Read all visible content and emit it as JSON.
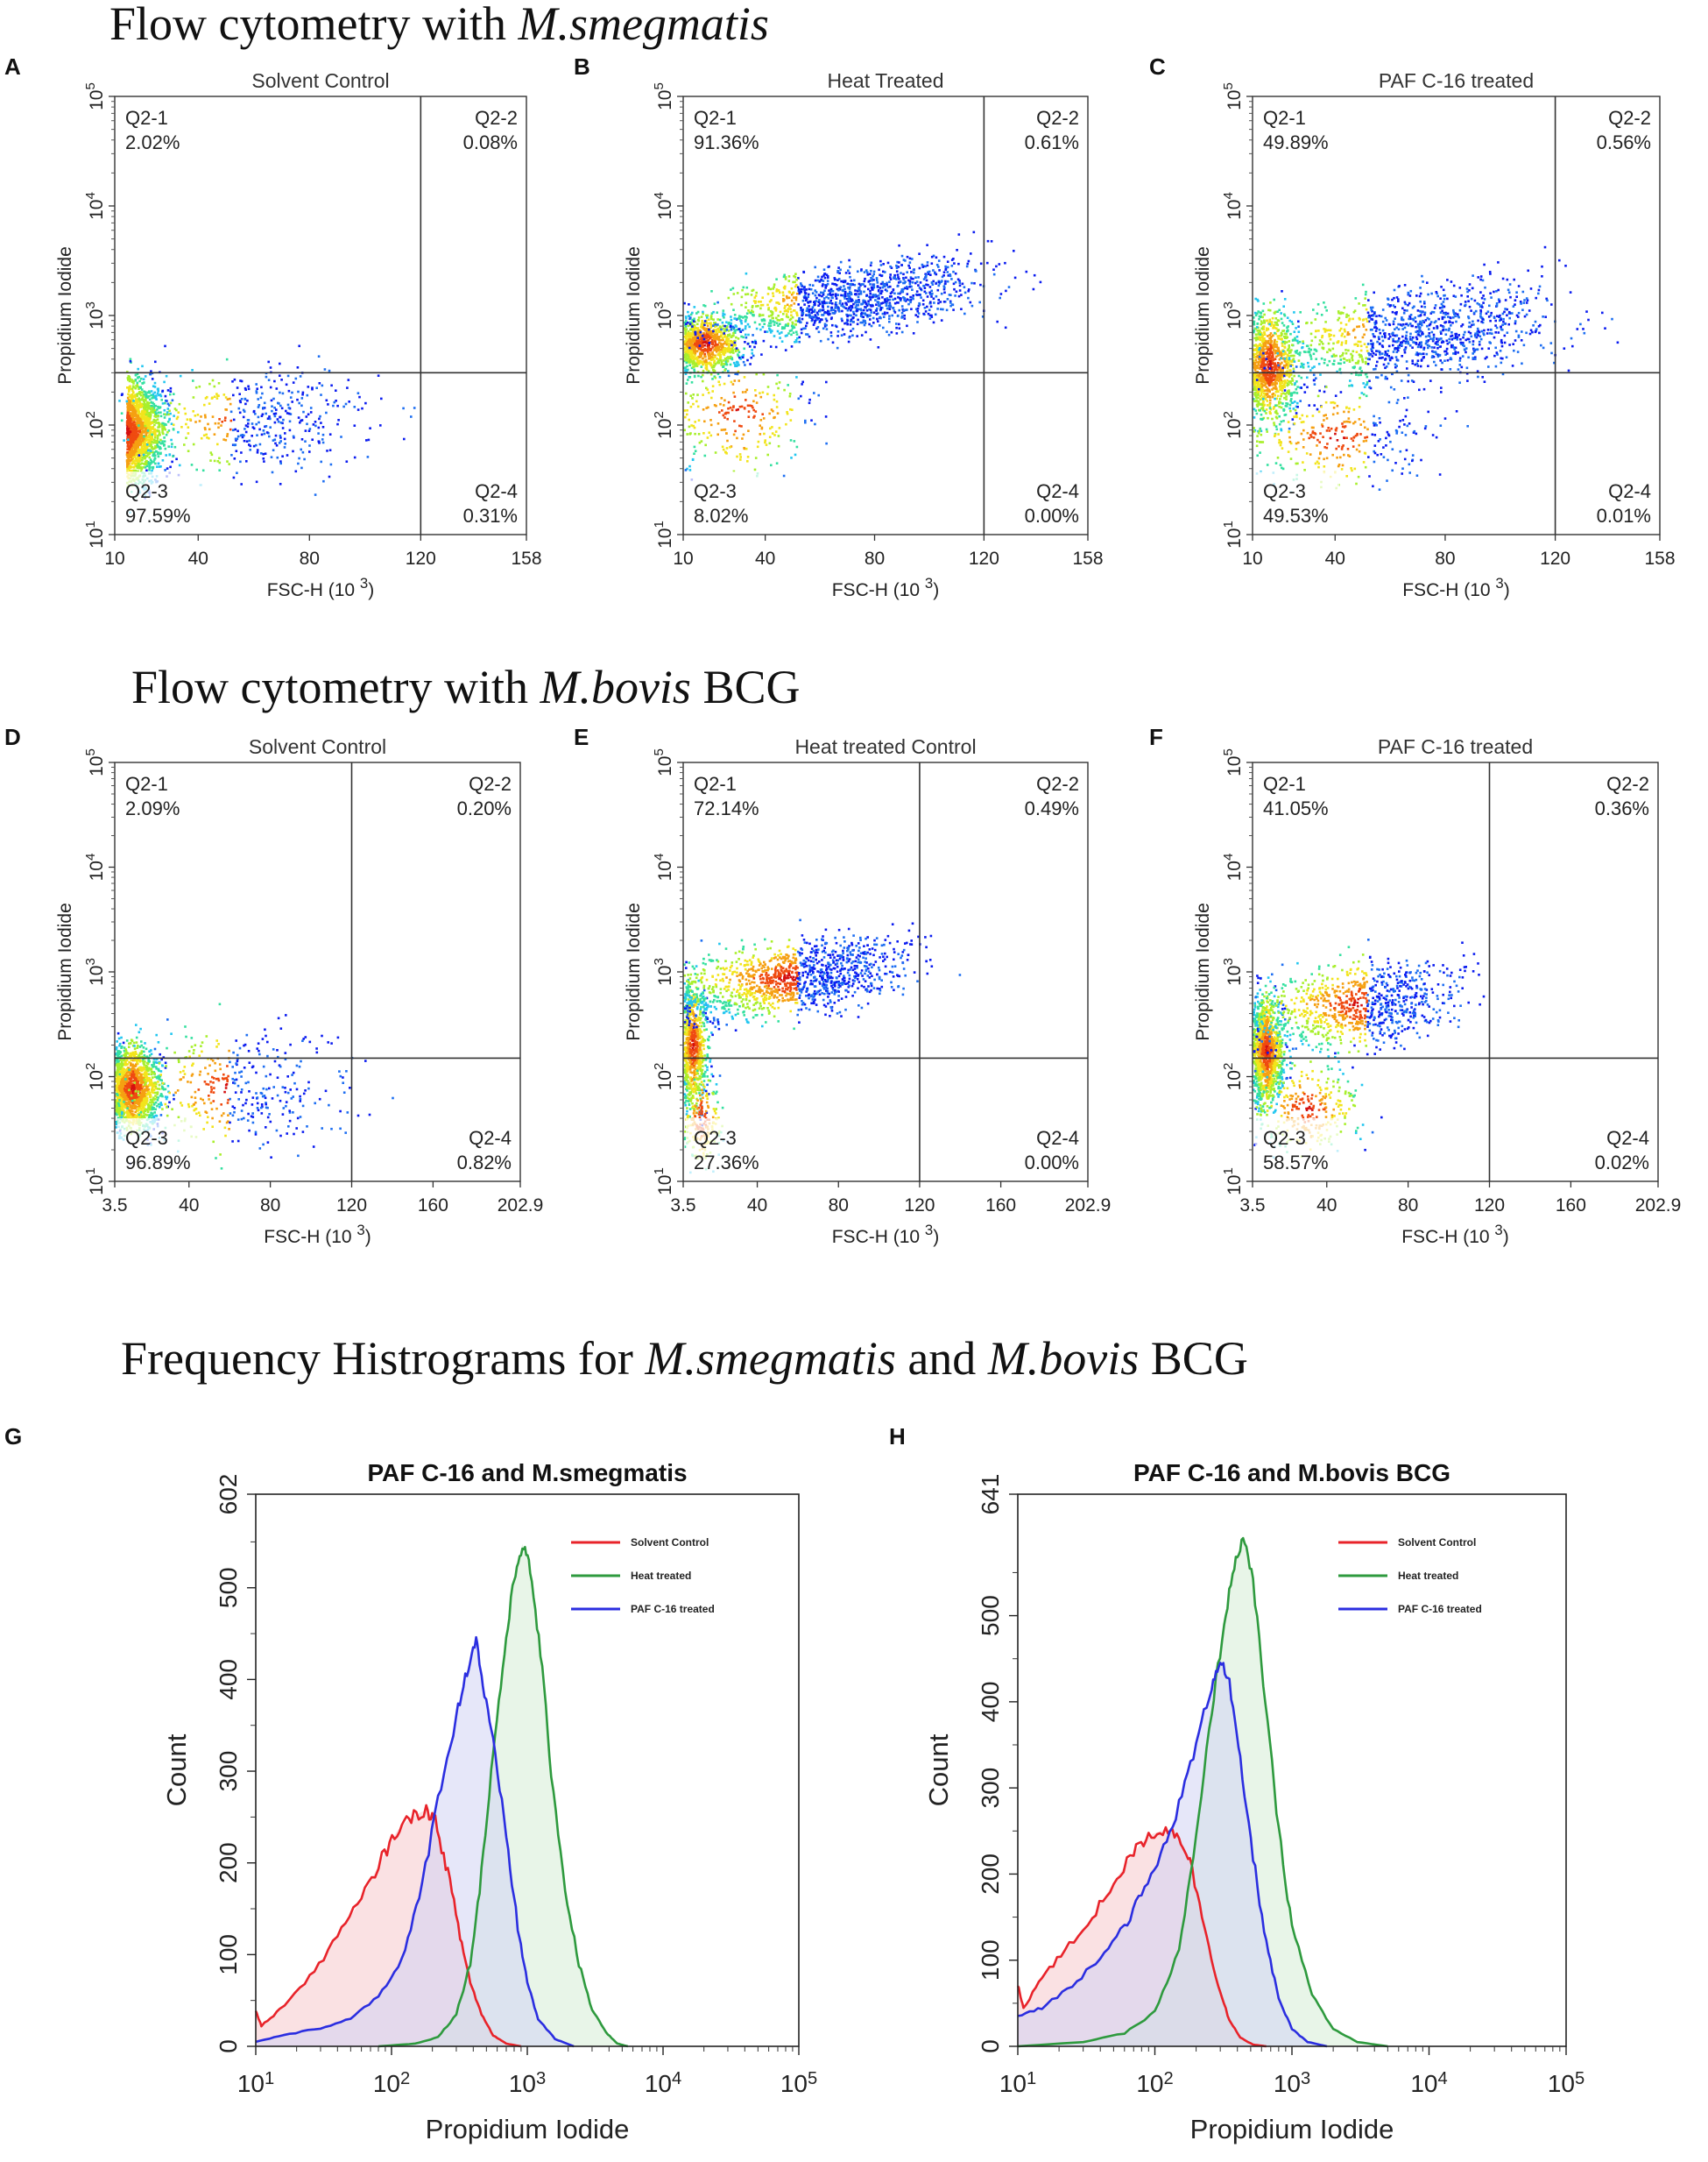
{
  "headings": {
    "smeg": {
      "prefix": "Flow cytometry with ",
      "organism": "M.smegmatis"
    },
    "bcg": {
      "prefix": "Flow cytometry with ",
      "organism": "M.bovis",
      "suffix": " BCG"
    },
    "hist": {
      "prefix": "Frequency Histrograms for ",
      "org1": "M.smegmatis",
      "middle": " and ",
      "org2": "M.bovis",
      "suffix": " BCG"
    }
  },
  "chart_data": [
    {
      "panel": "A",
      "type": "scatter",
      "title": "Solvent Control",
      "organism": "M.smegmatis",
      "xlabel": "FSC-H  (10 3)",
      "ylabel": "Propidium Iodide",
      "xticks": [
        "10",
        "40",
        "80",
        "120",
        "158"
      ],
      "xrange": [
        10,
        158
      ],
      "yticks": [
        "10 1",
        "10 2",
        "10 3",
        "10 4",
        "10 5"
      ],
      "yscale": "log",
      "yrange": [
        10,
        100000
      ],
      "gate": {
        "x": 120,
        "y": 300
      },
      "quadrants": {
        "q1": {
          "name": "Q2-1",
          "pct": "2.02%"
        },
        "q2": {
          "name": "Q2-2",
          "pct": "0.08%"
        },
        "q3": {
          "name": "Q2-3",
          "pct": "97.59%"
        },
        "q4": {
          "name": "Q2-4",
          "pct": "0.31%"
        }
      }
    },
    {
      "panel": "B",
      "type": "scatter",
      "title": "Heat Treated",
      "organism": "M.smegmatis",
      "xlabel": "FSC-H  (10 3)",
      "ylabel": "Propidium Iodide",
      "xticks": [
        "10",
        "40",
        "80",
        "120",
        "158"
      ],
      "xrange": [
        10,
        158
      ],
      "yticks": [
        "10 1",
        "10 2",
        "10 3",
        "10 4",
        "10 5"
      ],
      "yscale": "log",
      "yrange": [
        10,
        100000
      ],
      "gate": {
        "x": 120,
        "y": 300
      },
      "quadrants": {
        "q1": {
          "name": "Q2-1",
          "pct": "91.36%"
        },
        "q2": {
          "name": "Q2-2",
          "pct": "0.61%"
        },
        "q3": {
          "name": "Q2-3",
          "pct": "8.02%"
        },
        "q4": {
          "name": "Q2-4",
          "pct": "0.00%"
        }
      }
    },
    {
      "panel": "C",
      "type": "scatter",
      "title": "PAF C-16 treated",
      "organism": "M.smegmatis",
      "xlabel": "FSC-H  (10 3)",
      "ylabel": "Propidium Iodide",
      "xticks": [
        "10",
        "40",
        "80",
        "120",
        "158"
      ],
      "xrange": [
        10,
        158
      ],
      "yticks": [
        "10 1",
        "10 2",
        "10 3",
        "10 4",
        "10 5"
      ],
      "yscale": "log",
      "yrange": [
        10,
        100000
      ],
      "gate": {
        "x": 120,
        "y": 300
      },
      "quadrants": {
        "q1": {
          "name": "Q2-1",
          "pct": "49.89%"
        },
        "q2": {
          "name": "Q2-2",
          "pct": "0.56%"
        },
        "q3": {
          "name": "Q2-3",
          "pct": "49.53%"
        },
        "q4": {
          "name": "Q2-4",
          "pct": "0.01%"
        }
      }
    },
    {
      "panel": "D",
      "type": "scatter",
      "title": "Solvent Control",
      "organism": "M.bovis BCG",
      "xlabel": "FSC-H  (10 3)",
      "ylabel": "Propidium Iodide",
      "xticks": [
        "3.5",
        "40",
        "80",
        "120",
        "160",
        "202.9"
      ],
      "xrange": [
        3.5,
        202.9
      ],
      "yticks": [
        "10 1",
        "10 2",
        "10 3",
        "10 4",
        "10 5"
      ],
      "yscale": "log",
      "yrange": [
        10,
        100000
      ],
      "gate": {
        "x": 120,
        "y": 150
      },
      "quadrants": {
        "q1": {
          "name": "Q2-1",
          "pct": "2.09%"
        },
        "q2": {
          "name": "Q2-2",
          "pct": "0.20%"
        },
        "q3": {
          "name": "Q2-3",
          "pct": "96.89%"
        },
        "q4": {
          "name": "Q2-4",
          "pct": "0.82%"
        }
      }
    },
    {
      "panel": "E",
      "type": "scatter",
      "title": "Heat treated Control",
      "organism": "M.bovis BCG",
      "xlabel": "FSC-H  (10 3)",
      "ylabel": "Propidium Iodide",
      "xticks": [
        "3.5",
        "40",
        "80",
        "120",
        "160",
        "202.9"
      ],
      "xrange": [
        3.5,
        202.9
      ],
      "yticks": [
        "10 1",
        "10 2",
        "10 3",
        "10 4",
        "10 5"
      ],
      "yscale": "log",
      "yrange": [
        10,
        100000
      ],
      "gate": {
        "x": 120,
        "y": 150
      },
      "quadrants": {
        "q1": {
          "name": "Q2-1",
          "pct": "72.14%"
        },
        "q2": {
          "name": "Q2-2",
          "pct": "0.49%"
        },
        "q3": {
          "name": "Q2-3",
          "pct": "27.36%"
        },
        "q4": {
          "name": "Q2-4",
          "pct": "0.00%"
        }
      }
    },
    {
      "panel": "F",
      "type": "scatter",
      "title": "PAF C-16 treated",
      "organism": "M.bovis BCG",
      "xlabel": "FSC-H  (10 3)",
      "ylabel": "Propidium Iodide",
      "xticks": [
        "3.5",
        "40",
        "80",
        "120",
        "160",
        "202.9"
      ],
      "xrange": [
        3.5,
        202.9
      ],
      "yticks": [
        "10 1",
        "10 2",
        "10 3",
        "10 4",
        "10 5"
      ],
      "yscale": "log",
      "yrange": [
        10,
        100000
      ],
      "gate": {
        "x": 120,
        "y": 150
      },
      "quadrants": {
        "q1": {
          "name": "Q2-1",
          "pct": "41.05%"
        },
        "q2": {
          "name": "Q2-2",
          "pct": "0.36%"
        },
        "q3": {
          "name": "Q2-3",
          "pct": "58.57%"
        },
        "q4": {
          "name": "Q2-4",
          "pct": "0.02%"
        }
      }
    },
    {
      "panel": "G",
      "type": "area",
      "title": "PAF C-16 and M.smegmatis",
      "xlabel": "Propidium Iodide",
      "ylabel": "Count",
      "xscale": "log",
      "xrange": [
        10,
        100000
      ],
      "xticks": [
        "10 1",
        "10 2",
        "10 3",
        "10 4",
        "10 5"
      ],
      "yrange": [
        0,
        602
      ],
      "yticks": [
        "0",
        "100",
        "200",
        "300",
        "400",
        "500",
        "602"
      ],
      "legend_position": "top-right",
      "series": [
        {
          "name": "Solvent Control",
          "color": "#e8232a",
          "fill": "#f6c9cc",
          "points": [
            [
              10,
              40
            ],
            [
              11,
              22
            ],
            [
              15,
              40
            ],
            [
              25,
              75
            ],
            [
              40,
              120
            ],
            [
              60,
              160
            ],
            [
              85,
              205
            ],
            [
              110,
              235
            ],
            [
              140,
              250
            ],
            [
              180,
              258
            ],
            [
              210,
              245
            ],
            [
              260,
              190
            ],
            [
              320,
              120
            ],
            [
              380,
              70
            ],
            [
              460,
              35
            ],
            [
              560,
              12
            ],
            [
              700,
              3
            ],
            [
              900,
              0
            ]
          ]
        },
        {
          "name": "Heat treated",
          "color": "#2e9a3e",
          "fill": "#d5ecd6",
          "points": [
            [
              80,
              0
            ],
            [
              150,
              3
            ],
            [
              220,
              10
            ],
            [
              300,
              35
            ],
            [
              380,
              90
            ],
            [
              460,
              190
            ],
            [
              560,
              320
            ],
            [
              680,
              430
            ],
            [
              800,
              510
            ],
            [
              920,
              548
            ],
            [
              1050,
              520
            ],
            [
              1250,
              430
            ],
            [
              1500,
              300
            ],
            [
              1900,
              170
            ],
            [
              2400,
              90
            ],
            [
              3000,
              40
            ],
            [
              3800,
              15
            ],
            [
              4600,
              3
            ],
            [
              5500,
              0
            ]
          ]
        },
        {
          "name": "PAF C-16 treated",
          "color": "#2b2ee0",
          "fill": "#d2d4f4",
          "points": [
            [
              10,
              5
            ],
            [
              16,
              12
            ],
            [
              30,
              20
            ],
            [
              50,
              30
            ],
            [
              80,
              55
            ],
            [
              120,
              95
            ],
            [
              160,
              160
            ],
            [
              220,
              270
            ],
            [
              300,
              360
            ],
            [
              360,
              410
            ],
            [
              420,
              445
            ],
            [
              470,
              395
            ],
            [
              560,
              330
            ],
            [
              700,
              230
            ],
            [
              850,
              130
            ],
            [
              1000,
              70
            ],
            [
              1200,
              30
            ],
            [
              1600,
              8
            ],
            [
              2200,
              0
            ]
          ]
        }
      ]
    },
    {
      "panel": "H",
      "type": "area",
      "title": "PAF C-16 and M.bovis BCG",
      "xlabel": "Propidium Iodide",
      "ylabel": "Count",
      "xscale": "log",
      "xrange": [
        10,
        100000
      ],
      "xticks": [
        "10 1",
        "10 2",
        "10 3",
        "10 4",
        "10 5"
      ],
      "yrange": [
        0,
        641
      ],
      "yticks": [
        "0",
        "100",
        "200",
        "300",
        "400",
        "500",
        "641"
      ],
      "legend_position": "top-right",
      "series": [
        {
          "name": "Solvent Control",
          "color": "#e8232a",
          "fill": "#f6c9cc",
          "points": [
            [
              10,
              70
            ],
            [
              11,
              45
            ],
            [
              15,
              80
            ],
            [
              22,
              110
            ],
            [
              35,
              150
            ],
            [
              50,
              190
            ],
            [
              70,
              225
            ],
            [
              90,
              245
            ],
            [
              120,
              252
            ],
            [
              150,
              245
            ],
            [
              180,
              215
            ],
            [
              230,
              140
            ],
            [
              290,
              70
            ],
            [
              350,
              30
            ],
            [
              420,
              10
            ],
            [
              520,
              2
            ],
            [
              650,
              0
            ]
          ]
        },
        {
          "name": "Heat treated",
          "color": "#2e9a3e",
          "fill": "#d5ecd6",
          "points": [
            [
              10,
              0
            ],
            [
              30,
              5
            ],
            [
              60,
              15
            ],
            [
              100,
              40
            ],
            [
              150,
              110
            ],
            [
              200,
              240
            ],
            [
              260,
              390
            ],
            [
              320,
              490
            ],
            [
              380,
              560
            ],
            [
              440,
              590
            ],
            [
              520,
              540
            ],
            [
              640,
              400
            ],
            [
              800,
              250
            ],
            [
              1000,
              140
            ],
            [
              1400,
              60
            ],
            [
              2000,
              20
            ],
            [
              3000,
              5
            ],
            [
              5000,
              0
            ]
          ]
        },
        {
          "name": "PAF C-16 treated",
          "color": "#2b2ee0",
          "fill": "#d2d4f4",
          "points": [
            [
              10,
              35
            ],
            [
              15,
              45
            ],
            [
              25,
              70
            ],
            [
              40,
              105
            ],
            [
              60,
              140
            ],
            [
              80,
              175
            ],
            [
              110,
              220
            ],
            [
              150,
              280
            ],
            [
              200,
              350
            ],
            [
              260,
              420
            ],
            [
              300,
              450
            ],
            [
              350,
              420
            ],
            [
              420,
              330
            ],
            [
              520,
              220
            ],
            [
              650,
              120
            ],
            [
              800,
              55
            ],
            [
              1000,
              20
            ],
            [
              1300,
              5
            ],
            [
              1800,
              0
            ]
          ]
        }
      ]
    }
  ]
}
